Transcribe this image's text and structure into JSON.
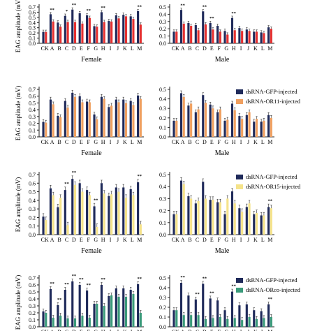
{
  "figure": {
    "rows": [
      {
        "female_label": "Female",
        "male_label": "Male",
        "legend": []
      },
      {
        "female_label": "Female",
        "male_label": "Male",
        "legend": [
          {
            "name": "dsRNA-GFP-injected",
            "color": "#1f2a5a"
          },
          {
            "name": "dsRNA-OR11-injected",
            "color": "#f0a060"
          }
        ]
      },
      {
        "female_label": "Female",
        "male_label": "Male",
        "legend": [
          {
            "name": "dsRNA-GFP-injected",
            "color": "#1f2a5a"
          },
          {
            "name": "dsRNA-OR15-injected",
            "color": "#f5e38a"
          }
        ]
      },
      {
        "female_label": "",
        "male_label": "",
        "legend": [
          {
            "name": "dsRNA-GFP-injected",
            "color": "#1f2a5a"
          },
          {
            "name": "dsRNA-ORco-injected",
            "color": "#3a9a7a"
          }
        ]
      }
    ]
  },
  "chart_data": [
    {
      "type": "bar",
      "panel": "row1-female",
      "ylabel": "EAG amplitude (mV)",
      "ylim": [
        0,
        0.7
      ],
      "categories": [
        "CK",
        "A",
        "B",
        "C",
        "D",
        "E",
        "F",
        "G",
        "H",
        "I",
        "J",
        "K",
        "L",
        "M"
      ],
      "series": [
        {
          "color": "#1f2a5a",
          "values": [
            0.22,
            0.56,
            0.4,
            0.53,
            0.65,
            0.58,
            0.54,
            0.33,
            0.6,
            0.43,
            0.54,
            0.55,
            0.52,
            0.62
          ]
        },
        {
          "color": "#e53030",
          "values": [
            0.22,
            0.42,
            0.32,
            0.41,
            0.41,
            0.38,
            0.49,
            0.32,
            0.41,
            0.42,
            0.48,
            0.52,
            0.47,
            0.36
          ]
        }
      ],
      "significance": [
        "",
        "**",
        "",
        "*",
        "**",
        "",
        "**",
        "",
        "**",
        "",
        "",
        "",
        "",
        "**"
      ]
    },
    {
      "type": "bar",
      "panel": "row1-male",
      "ylabel": "",
      "ylim": [
        0,
        0.5
      ],
      "categories": [
        "CK",
        "A",
        "B",
        "C",
        "D",
        "E",
        "F",
        "G",
        "H",
        "I",
        "J",
        "K",
        "L",
        "M"
      ],
      "series": [
        {
          "color": "#1f2a5a",
          "values": [
            0.16,
            0.46,
            0.28,
            0.25,
            0.44,
            0.28,
            0.24,
            0.17,
            0.35,
            0.21,
            0.19,
            0.16,
            0.15,
            0.22
          ]
        },
        {
          "color": "#e53030",
          "values": [
            0.16,
            0.27,
            0.24,
            0.18,
            0.26,
            0.19,
            0.16,
            0.12,
            0.18,
            0.17,
            0.17,
            0.16,
            0.14,
            0.2
          ]
        }
      ],
      "significance": [
        "",
        "**",
        "",
        "",
        "**",
        "**",
        "",
        "",
        "**",
        "",
        "",
        "",
        "",
        ""
      ]
    },
    {
      "type": "bar",
      "panel": "row2-female",
      "ylabel": "EAG amplitude (mV)",
      "ylim": [
        0,
        0.7
      ],
      "categories": [
        "CK",
        "A",
        "B",
        "C",
        "D",
        "E",
        "F",
        "G",
        "H",
        "I",
        "J",
        "K",
        "L",
        "M"
      ],
      "series": [
        {
          "color": "#1f2a5a",
          "values": [
            0.22,
            0.55,
            0.31,
            0.53,
            0.65,
            0.6,
            0.52,
            0.33,
            0.59,
            0.44,
            0.55,
            0.55,
            0.53,
            0.61
          ]
        },
        {
          "color": "#f0a060",
          "values": [
            0.21,
            0.48,
            0.29,
            0.43,
            0.59,
            0.51,
            0.51,
            0.26,
            0.56,
            0.46,
            0.51,
            0.5,
            0.47,
            0.56
          ]
        }
      ],
      "significance": []
    },
    {
      "type": "bar",
      "panel": "row2-male",
      "ylabel": "",
      "ylim": [
        0,
        0.5
      ],
      "categories": [
        "CK",
        "A",
        "B",
        "C",
        "D",
        "E",
        "F",
        "G",
        "H",
        "I",
        "J",
        "K",
        "L",
        "M"
      ],
      "series": [
        {
          "color": "#1f2a5a",
          "values": [
            0.17,
            0.46,
            0.33,
            0.26,
            0.44,
            0.34,
            0.26,
            0.17,
            0.35,
            0.22,
            0.23,
            0.16,
            0.16,
            0.23
          ]
        },
        {
          "color": "#f0a060",
          "values": [
            0.17,
            0.42,
            0.35,
            0.29,
            0.36,
            0.3,
            0.29,
            0.18,
            0.28,
            0.19,
            0.26,
            0.19,
            0.17,
            0.2
          ]
        }
      ],
      "significance": []
    },
    {
      "type": "bar",
      "panel": "row3-female",
      "ylabel": "EAG amplitude (mV)",
      "ylim": [
        0,
        0.7
      ],
      "categories": [
        "CK",
        "A",
        "B",
        "C",
        "D",
        "E",
        "F",
        "G",
        "H",
        "I",
        "J",
        "K",
        "L",
        "M"
      ],
      "series": [
        {
          "color": "#1f2a5a",
          "values": [
            0.21,
            0.54,
            0.32,
            0.52,
            0.65,
            0.6,
            0.52,
            0.33,
            0.6,
            0.45,
            0.55,
            0.55,
            0.53,
            0.61
          ]
        },
        {
          "color": "#f5e38a",
          "values": [
            0.17,
            0.46,
            0.43,
            0.11,
            0.58,
            0.5,
            0.46,
            0.09,
            0.48,
            0.47,
            0.5,
            0.43,
            0.46,
            0.12
          ]
        }
      ],
      "significance": [
        "",
        "",
        "",
        "**",
        "**",
        "",
        "",
        "**",
        "",
        "",
        "",
        "",
        "",
        "**"
      ]
    },
    {
      "type": "bar",
      "panel": "row3-male",
      "ylabel": "",
      "ylim": [
        0,
        0.5
      ],
      "categories": [
        "CK",
        "A",
        "B",
        "C",
        "D",
        "E",
        "F",
        "G",
        "H",
        "I",
        "J",
        "K",
        "L",
        "M"
      ],
      "series": [
        {
          "color": "#1f2a5a",
          "values": [
            0.17,
            0.45,
            0.32,
            0.26,
            0.44,
            0.29,
            0.27,
            0.17,
            0.36,
            0.22,
            0.23,
            0.17,
            0.16,
            0.23
          ]
        },
        {
          "color": "#f5e38a",
          "values": [
            0.17,
            0.42,
            0.3,
            0.28,
            0.3,
            0.29,
            0.27,
            0.3,
            0.26,
            0.19,
            0.26,
            0.18,
            0.16,
            0.22
          ]
        }
      ],
      "significance": [
        "",
        "",
        "",
        "",
        "",
        "",
        "",
        "",
        "",
        "",
        "",
        "",
        "",
        "**"
      ]
    },
    {
      "type": "bar",
      "panel": "row4-female",
      "ylabel": "EAG amplitude (mV)",
      "ylim": [
        0,
        0.7
      ],
      "categories": [
        "CK",
        "A",
        "B",
        "C",
        "D",
        "E",
        "F",
        "G",
        "H",
        "I",
        "J",
        "K",
        "L",
        "M"
      ],
      "series": [
        {
          "color": "#1f2a5a",
          "values": [
            0.22,
            0.54,
            0.31,
            0.53,
            0.65,
            0.6,
            0.52,
            0.33,
            0.6,
            0.44,
            0.55,
            0.55,
            0.53,
            0.61
          ]
        },
        {
          "color": "#3a9a7a",
          "values": [
            0.2,
            0.13,
            0.16,
            0.12,
            0.12,
            0.16,
            0.13,
            0.33,
            0.3,
            0.45,
            0.43,
            0.43,
            0.47,
            0.2
          ]
        }
      ],
      "significance": [
        "",
        "**",
        "**",
        "**",
        "**",
        "**",
        "**",
        "",
        "**",
        "",
        "",
        "",
        "",
        "**"
      ]
    },
    {
      "type": "bar",
      "panel": "row4-male",
      "ylabel": "",
      "ylim": [
        0,
        0.5
      ],
      "categories": [
        "CK",
        "A",
        "B",
        "C",
        "D",
        "E",
        "F",
        "G",
        "H",
        "I",
        "J",
        "K",
        "L",
        "M"
      ],
      "series": [
        {
          "color": "#1f2a5a",
          "values": [
            0.17,
            0.45,
            0.32,
            0.28,
            0.44,
            0.29,
            0.27,
            0.17,
            0.36,
            0.22,
            0.23,
            0.17,
            0.16,
            0.23
          ]
        },
        {
          "color": "#3a9a7a",
          "values": [
            0.17,
            0.12,
            0.12,
            0.12,
            0.08,
            0.09,
            0.1,
            0.08,
            0.09,
            0.07,
            0.1,
            0.08,
            0.09,
            0.1
          ]
        }
      ],
      "significance": [
        "",
        "**",
        "",
        "**",
        "**",
        "**",
        "",
        "",
        "**",
        "",
        "",
        "",
        "",
        "**"
      ]
    }
  ]
}
